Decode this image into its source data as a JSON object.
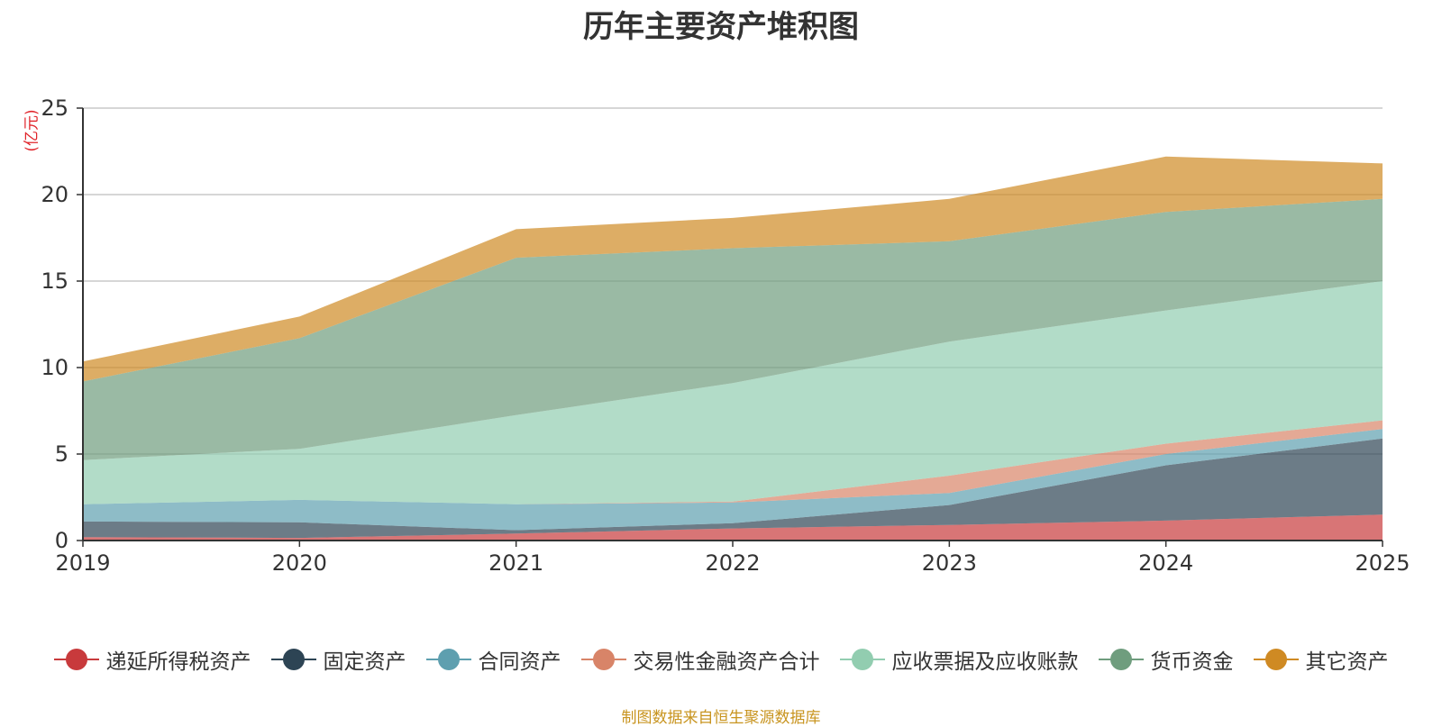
{
  "title": "历年主要资产堆积图",
  "unit": "(亿元)",
  "source": "制图数据来自恒生聚源数据库",
  "chart_data": {
    "type": "area",
    "stacked": true,
    "title": "历年主要资产堆积图",
    "ylabel": "(亿元)",
    "xlabel": "",
    "x": [
      "2019",
      "2020",
      "2021",
      "2022",
      "2023",
      "2024",
      "2025"
    ],
    "ylim": [
      0,
      25
    ],
    "yticks": [
      0,
      5,
      10,
      15,
      20,
      25
    ],
    "grid": true,
    "legend_position": "bottom",
    "series": [
      {
        "name": "递延所得税资产",
        "color": "#c83a3c",
        "values": [
          0.2,
          0.15,
          0.4,
          0.7,
          0.9,
          1.15,
          1.5
        ]
      },
      {
        "name": "固定资产",
        "color": "#2d4454",
        "values": [
          0.9,
          0.9,
          0.2,
          0.3,
          1.15,
          3.2,
          4.4
        ]
      },
      {
        "name": "合同资产",
        "color": "#5e9faf",
        "values": [
          1.0,
          1.3,
          1.5,
          1.2,
          0.7,
          0.65,
          0.55
        ]
      },
      {
        "name": "交易性金融资产合计",
        "color": "#d88468",
        "values": [
          0.0,
          0.0,
          0.0,
          0.05,
          1.0,
          0.6,
          0.5
        ]
      },
      {
        "name": "应收票据及应收账款",
        "color": "#92cdb0",
        "values": [
          2.55,
          2.95,
          5.15,
          6.85,
          7.75,
          7.7,
          8.05
        ]
      },
      {
        "name": "货币资金",
        "color": "#6f9d7e",
        "values": [
          4.55,
          6.4,
          9.1,
          7.8,
          5.8,
          5.7,
          4.75
        ]
      },
      {
        "name": "其它资产",
        "color": "#cf8a23",
        "values": [
          1.15,
          1.25,
          1.65,
          1.75,
          2.45,
          3.2,
          2.05
        ]
      }
    ]
  }
}
